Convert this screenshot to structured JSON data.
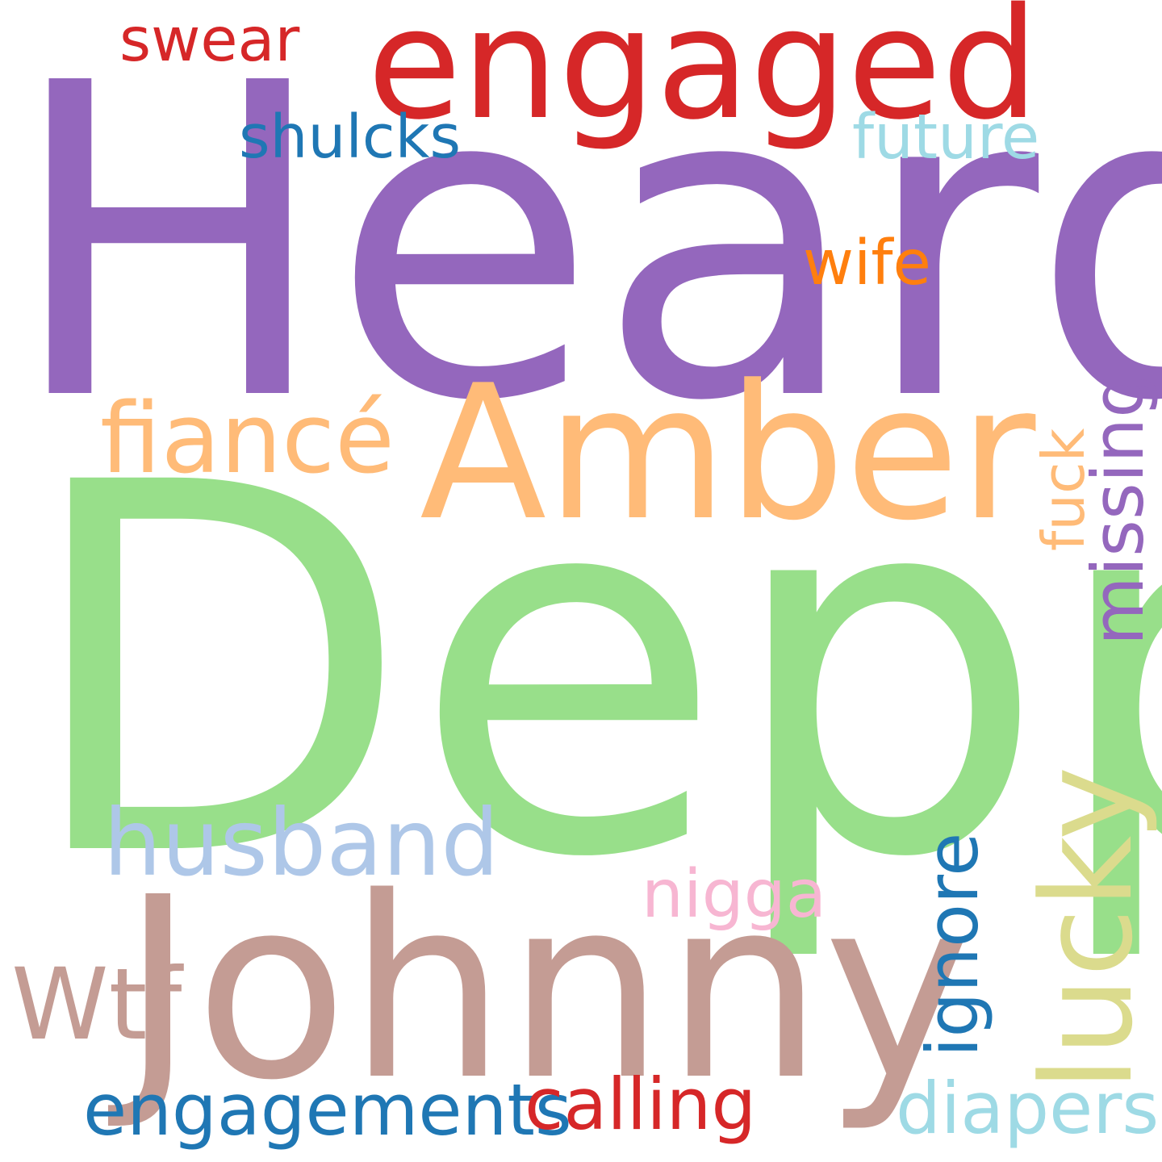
{
  "words": {
    "heard": {
      "text": "Heard",
      "color": "#9467bd"
    },
    "depp": {
      "text": "Depp",
      "color": "#98df8a"
    },
    "johnny": {
      "text": "Johnny",
      "color": "#c49c94"
    },
    "amber": {
      "text": "Amber",
      "color": "#ffbb78"
    },
    "engaged": {
      "text": "engaged",
      "color": "#d62728"
    },
    "swear": {
      "text": "swear",
      "color": "#d62728"
    },
    "shulcks": {
      "text": "shulcks",
      "color": "#1f77b4"
    },
    "future": {
      "text": "future",
      "color": "#9edae5"
    },
    "wife": {
      "text": "wife",
      "color": "#ff7f0e"
    },
    "fiance": {
      "text": "fiancé",
      "color": "#ffbb78"
    },
    "fuck": {
      "text": "fuck",
      "color": "#ffbb78"
    },
    "missing": {
      "text": "missing",
      "color": "#9467bd"
    },
    "husband": {
      "text": "husband",
      "color": "#aec7e8"
    },
    "lucky": {
      "text": "lucky",
      "color": "#dbdb8d"
    },
    "ignore": {
      "text": "ignore",
      "color": "#1f77b4"
    },
    "nigga": {
      "text": "nigga",
      "color": "#f7b6d2"
    },
    "wtf": {
      "text": "Wtf",
      "color": "#c49c94"
    },
    "engagements": {
      "text": "engagements",
      "color": "#1f77b4"
    },
    "calling": {
      "text": "calling",
      "color": "#d62728"
    },
    "diapers": {
      "text": "diapers",
      "color": "#9edae5"
    }
  }
}
